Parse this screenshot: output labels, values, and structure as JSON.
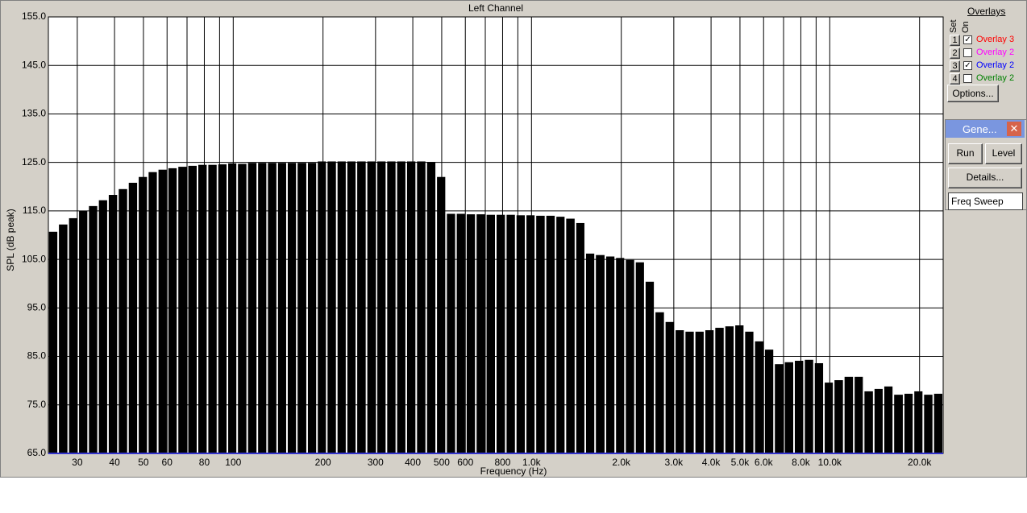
{
  "chart_data": {
    "type": "bar",
    "title": "Left Channel",
    "x_label": "Frequency (Hz)",
    "y_label": "SPL (dB peak)",
    "x": [
      24.9,
      26.9,
      29.1,
      31.4,
      33.9,
      36.6,
      39.5,
      42.7,
      46.1,
      49.8,
      53.7,
      58,
      62.6,
      67.6,
      73,
      78.9,
      85.2,
      92,
      99.3,
      107,
      116,
      125,
      135,
      146,
      157,
      170,
      184,
      198,
      214,
      231,
      249,
      269,
      291,
      314,
      339,
      366,
      395,
      427,
      461,
      498,
      537,
      580,
      626,
      676,
      730,
      789,
      852,
      920,
      993,
      1070,
      1160,
      1250,
      1350,
      1460,
      1570,
      1700,
      1840,
      1980,
      2140,
      2310,
      2490,
      2690,
      2910,
      3140,
      3390,
      3660,
      3950,
      4270,
      4610,
      4980,
      5370,
      5800,
      6260,
      6760,
      7300,
      7890,
      8520,
      9200,
      9930,
      10700,
      11600,
      12500,
      13500,
      14600,
      15700,
      17000,
      18400,
      19800,
      21400,
      23100
    ],
    "values": [
      110.7,
      112.2,
      113.5,
      115,
      116,
      117.2,
      118.3,
      119.5,
      120.8,
      122,
      123,
      123.5,
      123.8,
      124.1,
      124.3,
      124.5,
      124.5,
      124.6,
      124.8,
      124.7,
      124.9,
      124.9,
      124.9,
      124.9,
      124.9,
      124.9,
      124.9,
      125.2,
      125.2,
      125.2,
      125.2,
      125.2,
      125.2,
      125.2,
      125.2,
      125.2,
      125.2,
      125.2,
      125.1,
      122,
      114.4,
      114.4,
      114.3,
      114.3,
      114.2,
      114.2,
      114.2,
      114.1,
      114.1,
      114,
      114,
      113.8,
      113.4,
      112.5,
      106.2,
      105.9,
      105.6,
      105.3,
      104.9,
      104.4,
      100.4,
      94.1,
      92.1,
      90.4,
      90.1,
      90.1,
      90.4,
      90.9,
      91.2,
      91.4,
      90.1,
      88.1,
      86.4,
      83.4,
      83.8,
      84.1,
      84.3,
      83.6,
      79.6,
      80.1,
      80.8,
      80.8,
      77.8,
      78.3,
      78.8,
      77.1,
      77.3,
      77.8,
      77.1,
      77.3
    ],
    "color": "#000000",
    "x_log": true,
    "grid": true,
    "xlim": [
      24,
      24000
    ],
    "ylim": [
      65,
      155
    ],
    "xticks": [
      30,
      40,
      50,
      60,
      80,
      100,
      200,
      300,
      400,
      500,
      600,
      800,
      {
        "value": 1000,
        "label": "1.0k"
      },
      {
        "value": 2000,
        "label": "2.0k"
      },
      {
        "value": 3000,
        "label": "3.0k"
      },
      {
        "value": 4000,
        "label": "4.0k"
      },
      {
        "value": 5000,
        "label": "5.0k"
      },
      {
        "value": 6000,
        "label": "6.0k"
      },
      {
        "value": 8000,
        "label": "8.0k"
      },
      {
        "value": 10000,
        "label": "10.0k"
      },
      {
        "value": 20000,
        "label": "20.0k"
      }
    ],
    "xgrid_unlabeled": [
      70,
      90,
      700,
      900,
      7000,
      9000
    ],
    "yticks": [
      {
        "value": 65,
        "label": "65.0"
      },
      {
        "value": 75,
        "label": "75.0"
      },
      {
        "value": 85,
        "label": "85.0"
      },
      {
        "value": 95,
        "label": "95.0"
      },
      {
        "value": 105,
        "label": "105.0"
      },
      {
        "value": 115,
        "label": "115.0"
      },
      {
        "value": 125,
        "label": "125.0"
      },
      {
        "value": 135,
        "label": "135.0"
      },
      {
        "value": 145,
        "label": "145.0"
      },
      {
        "value": 155,
        "label": "155.0"
      }
    ]
  },
  "overlays": {
    "title": "Overlays",
    "set_label": "Set",
    "on_label": "On",
    "rows": [
      {
        "set": "1",
        "checked": true,
        "label": "Overlay 3",
        "color": "#ff0000"
      },
      {
        "set": "2",
        "checked": false,
        "label": "Overlay 2",
        "color": "#ff00ff"
      },
      {
        "set": "3",
        "checked": true,
        "label": "Overlay 2",
        "color": "#0000ff"
      },
      {
        "set": "4",
        "checked": false,
        "label": "Overlay 2",
        "color": "#008000"
      }
    ],
    "options": "Options..."
  },
  "generator": {
    "title": "Gene...",
    "run": "Run",
    "level": "Level",
    "details": "Details...",
    "mode": "Freq Sweep"
  }
}
